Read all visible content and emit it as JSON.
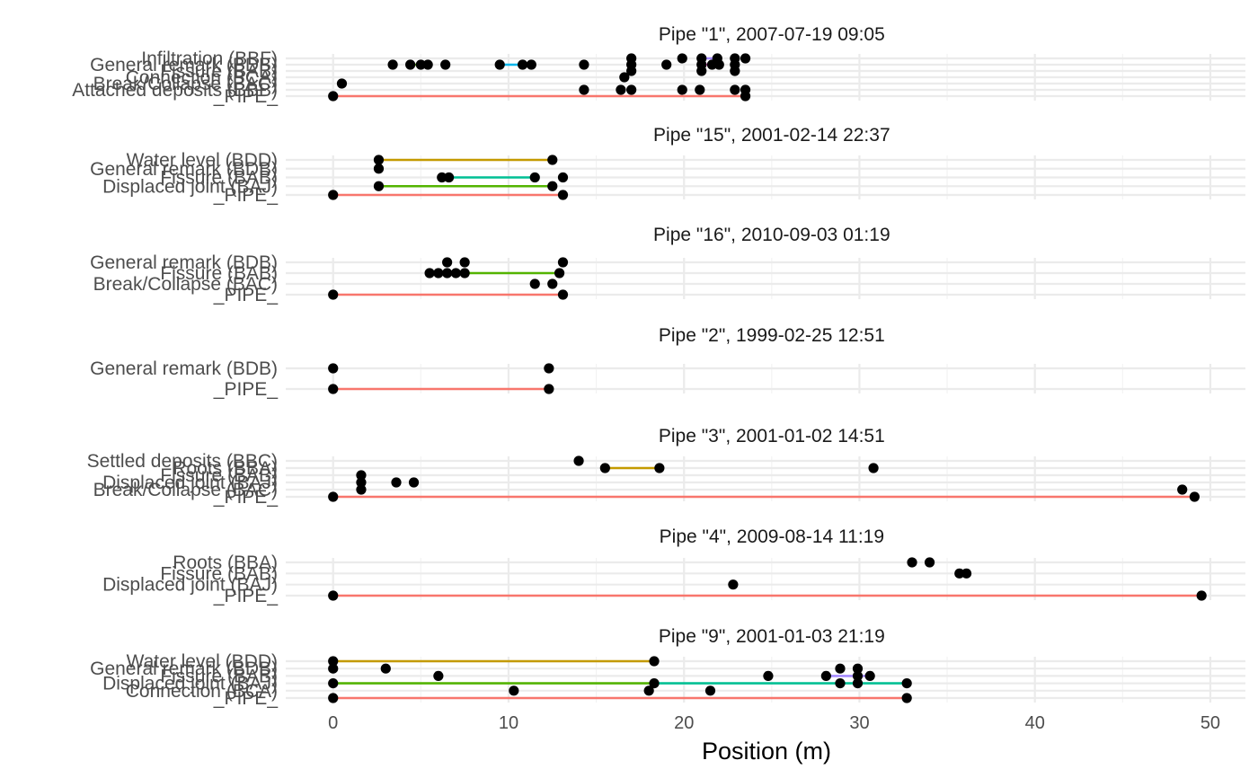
{
  "chart_data": {
    "type": "scatter",
    "xlabel": "Position (m)",
    "xlim": [
      -2.7,
      52
    ],
    "x_ticks": [
      0,
      10,
      20,
      30,
      40,
      50
    ],
    "grid": true,
    "legend": "none",
    "colors": {
      "_PIPE_": "#F8766D",
      "Water level (BDD)": "#C49A00",
      "Displaced joint (BAJ)": "#53B400",
      "Fissure (BAB)": "#00C094",
      "General remark (BDB)": "#00B6EB",
      "Infiltration (BBF)": "#A58AFF",
      "Connection (BCA)": "#FB61D7",
      "Roots (BBA)": "#C49A00",
      "point": "#000000"
    },
    "panels": [
      {
        "title": "Pipe \"1\", 2007-07-19 09:05",
        "rows": [
          "_PIPE_",
          "Attached deposits (BBB)",
          "Break/Collapse (BAC)",
          "Connection (BCA)",
          "Fissure (BAB)",
          "General remark (BDB)",
          "Infiltration (BBF)"
        ],
        "segments": [
          {
            "row": "_PIPE_",
            "x1": 0,
            "x2": 23.5,
            "color": "#F8766D"
          },
          {
            "row": "General remark (BDB)",
            "x1": 9.5,
            "x2": 11.3,
            "color": "#00B6EB"
          },
          {
            "row": "General remark (BDB)",
            "x1": 4.5,
            "x2": 5.3,
            "color": "#53B400"
          },
          {
            "row": "Infiltration (BBF)",
            "x1": 21.0,
            "x2": 21.8,
            "color": "#A58AFF"
          },
          {
            "row": "General remark (BDB)",
            "x1": 21.0,
            "x2": 21.8,
            "color": "#FB61D7"
          }
        ],
        "points": [
          {
            "row": "_PIPE_",
            "x": [
              0,
              23.5
            ]
          },
          {
            "row": "Attached deposits (BBB)",
            "x": [
              14.3,
              16.4,
              17.0,
              19.9,
              20.9,
              22.9,
              23.5
            ]
          },
          {
            "row": "Break/Collapse (BAC)",
            "x": [
              0.5
            ]
          },
          {
            "row": "Connection (BCA)",
            "x": [
              16.6
            ]
          },
          {
            "row": "Fissure (BAB)",
            "x": [
              17.0,
              21.0,
              22.9
            ]
          },
          {
            "row": "General remark (BDB)",
            "x": [
              3.4,
              4.4,
              5.0,
              5.4,
              6.4,
              9.5,
              10.8,
              11.3,
              14.3,
              17.0,
              19.0,
              21.0,
              21.6,
              22.0,
              22.9
            ]
          },
          {
            "row": "Infiltration (BBF)",
            "x": [
              17.0,
              19.9,
              21.0,
              21.9,
              22.9,
              23.5
            ]
          }
        ]
      },
      {
        "title": "Pipe \"15\", 2001-02-14 22:37",
        "rows": [
          "_PIPE_",
          "Displaced joint (BAJ)",
          "Fissure (BAB)",
          "General remark (BDB)",
          "Water level (BDD)"
        ],
        "segments": [
          {
            "row": "_PIPE_",
            "x1": 0,
            "x2": 13.1,
            "color": "#F8766D"
          },
          {
            "row": "Displaced joint (BAJ)",
            "x1": 2.6,
            "x2": 12.5,
            "color": "#53B400"
          },
          {
            "row": "Fissure (BAB)",
            "x1": 6.4,
            "x2": 11.5,
            "color": "#00C094"
          },
          {
            "row": "Water level (BDD)",
            "x1": 2.6,
            "x2": 12.5,
            "color": "#C49A00"
          }
        ],
        "points": [
          {
            "row": "_PIPE_",
            "x": [
              0,
              13.1
            ]
          },
          {
            "row": "Displaced joint (BAJ)",
            "x": [
              2.6,
              12.5
            ]
          },
          {
            "row": "Fissure (BAB)",
            "x": [
              6.2,
              6.6,
              11.5,
              13.1
            ]
          },
          {
            "row": "General remark (BDB)",
            "x": [
              2.6
            ]
          },
          {
            "row": "Water level (BDD)",
            "x": [
              2.6,
              12.5
            ]
          }
        ]
      },
      {
        "title": "Pipe \"16\", 2010-09-03 01:19",
        "rows": [
          "_PIPE_",
          "Break/Collapse (BAC)",
          "Fissure (BAB)",
          "General remark (BDB)"
        ],
        "segments": [
          {
            "row": "_PIPE_",
            "x1": 0,
            "x2": 13.1,
            "color": "#F8766D"
          },
          {
            "row": "Fissure (BAB)",
            "x1": 5.5,
            "x2": 12.9,
            "color": "#53B400"
          }
        ],
        "points": [
          {
            "row": "_PIPE_",
            "x": [
              0,
              13.1
            ]
          },
          {
            "row": "Break/Collapse (BAC)",
            "x": [
              11.5,
              12.5
            ]
          },
          {
            "row": "Fissure (BAB)",
            "x": [
              5.5,
              6.0,
              6.5,
              7.0,
              7.5,
              12.9
            ]
          },
          {
            "row": "General remark (BDB)",
            "x": [
              6.5,
              7.5,
              13.1
            ]
          }
        ]
      },
      {
        "title": "Pipe \"2\", 1999-02-25 12:51",
        "rows": [
          "_PIPE_",
          "General remark (BDB)"
        ],
        "segments": [
          {
            "row": "_PIPE_",
            "x1": 0,
            "x2": 12.3,
            "color": "#F8766D"
          }
        ],
        "points": [
          {
            "row": "_PIPE_",
            "x": [
              0,
              12.3
            ]
          },
          {
            "row": "General remark (BDB)",
            "x": [
              0,
              12.3
            ]
          }
        ]
      },
      {
        "title": "Pipe \"3\", 2001-01-02 14:51",
        "rows": [
          "_PIPE_",
          "Break/Collapse (BAC)",
          "Displaced joint (BAJ)",
          "Fissure (BAB)",
          "Roots (BBA)",
          "Settled deposits (BBC)"
        ],
        "segments": [
          {
            "row": "_PIPE_",
            "x1": 0,
            "x2": 49.1,
            "color": "#F8766D"
          },
          {
            "row": "Roots (BBA)",
            "x1": 15.5,
            "x2": 18.6,
            "color": "#C49A00"
          }
        ],
        "points": [
          {
            "row": "_PIPE_",
            "x": [
              0,
              49.1
            ]
          },
          {
            "row": "Break/Collapse (BAC)",
            "x": [
              1.6,
              48.4
            ]
          },
          {
            "row": "Displaced joint (BAJ)",
            "x": [
              1.6,
              3.6,
              4.6
            ]
          },
          {
            "row": "Fissure (BAB)",
            "x": [
              1.6
            ]
          },
          {
            "row": "Roots (BBA)",
            "x": [
              15.5,
              18.6,
              30.8
            ]
          },
          {
            "row": "Settled deposits (BBC)",
            "x": [
              14.0
            ]
          }
        ]
      },
      {
        "title": "Pipe \"4\", 2009-08-14 11:19",
        "rows": [
          "_PIPE_",
          "Displaced joint (BAJ)",
          "Fissure (BAB)",
          "Roots (BBA)"
        ],
        "segments": [
          {
            "row": "_PIPE_",
            "x1": 0,
            "x2": 49.5,
            "color": "#F8766D"
          },
          {
            "row": "Fissure (BAB)",
            "x1": 35.7,
            "x2": 36.1,
            "color": "#C49A00"
          }
        ],
        "points": [
          {
            "row": "_PIPE_",
            "x": [
              0,
              49.5
            ]
          },
          {
            "row": "Displaced joint (BAJ)",
            "x": [
              22.8
            ]
          },
          {
            "row": "Fissure (BAB)",
            "x": [
              35.7,
              36.1
            ]
          },
          {
            "row": "Roots (BBA)",
            "x": [
              33.0,
              34.0
            ]
          }
        ]
      },
      {
        "title": "Pipe \"9\", 2001-01-03 21:19",
        "rows": [
          "_PIPE_",
          "Connection (BCA)",
          "Displaced joint (BAJ)",
          "Fissure (BAB)",
          "General remark (BDB)",
          "Water level (BDD)"
        ],
        "segments": [
          {
            "row": "_PIPE_",
            "x1": 0,
            "x2": 32.7,
            "color": "#F8766D"
          },
          {
            "row": "Displaced joint (BAJ)",
            "x1": 0,
            "x2": 18.3,
            "color": "#53B400"
          },
          {
            "row": "Displaced joint (BAJ)",
            "x1": 18.3,
            "x2": 32.7,
            "color": "#00C094"
          },
          {
            "row": "Fissure (BAB)",
            "x1": 28.1,
            "x2": 30.6,
            "color": "#A58AFF"
          },
          {
            "row": "Water level (BDD)",
            "x1": 0,
            "x2": 18.3,
            "color": "#C49A00"
          }
        ],
        "points": [
          {
            "row": "_PIPE_",
            "x": [
              0,
              32.7
            ]
          },
          {
            "row": "Connection (BCA)",
            "x": [
              10.3,
              18.0,
              21.5
            ]
          },
          {
            "row": "Displaced joint (BAJ)",
            "x": [
              0,
              18.3,
              28.9,
              29.9,
              32.7
            ]
          },
          {
            "row": "Fissure (BAB)",
            "x": [
              6.0,
              24.8,
              28.1,
              29.9,
              30.6
            ]
          },
          {
            "row": "General remark (BDB)",
            "x": [
              0,
              3.0,
              28.9,
              29.9
            ]
          },
          {
            "row": "Water level (BDD)",
            "x": [
              0,
              18.3
            ]
          }
        ]
      }
    ]
  }
}
